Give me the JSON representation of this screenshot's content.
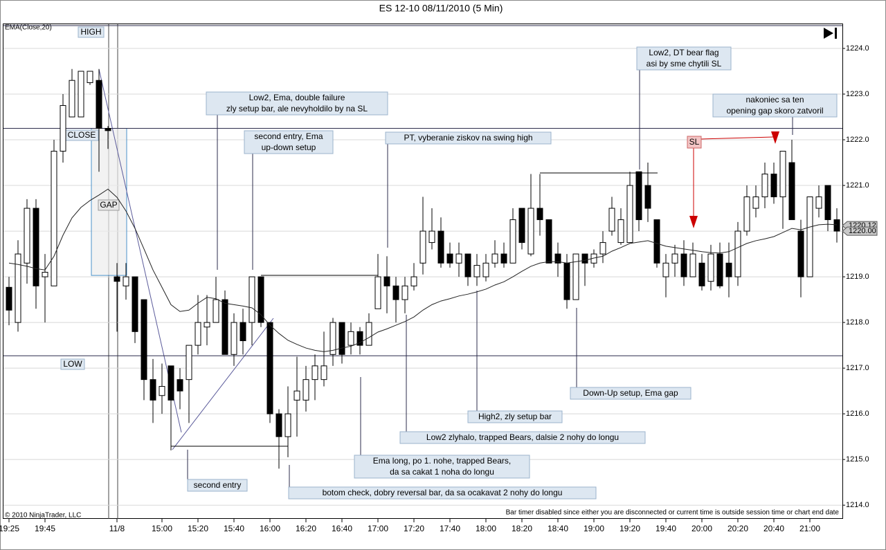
{
  "chart_data": {
    "type": "candlestick",
    "title": "ES 12-10  08/11/2010 (5 Min)",
    "categories": [
      "19:25",
      null,
      null,
      null,
      "19:45",
      null,
      null,
      null,
      null,
      null,
      null,
      null,
      "11/8",
      null,
      null,
      null,
      null,
      "15:00",
      null,
      null,
      null,
      "15:20",
      null,
      null,
      null,
      "15:40",
      null,
      null,
      null,
      "16:00",
      null,
      null,
      null,
      "16:20",
      null,
      null,
      null,
      "16:40",
      null,
      null,
      null,
      "17:00",
      null,
      null,
      null,
      "17:20",
      null,
      null,
      null,
      "17:40",
      null,
      null,
      null,
      "18:00",
      null,
      null,
      null,
      "18:20",
      null,
      null,
      null,
      "18:40",
      null,
      null,
      null,
      "19:00",
      null,
      null,
      null,
      "19:20",
      null,
      null,
      null,
      "19:40",
      null,
      null,
      null,
      "20:00",
      null,
      null,
      null,
      "20:20",
      null,
      null,
      null,
      "20:40",
      null,
      null,
      null,
      "21:00",
      null,
      null,
      null
    ],
    "open": [
      1218.77,
      1218.0,
      1219.3,
      1220.5,
      1219.0,
      1218.8,
      1221.75,
      1222.5,
      1222.5,
      1223.25,
      1223.3,
      1222.25,
      1219.0,
      1218.8,
      1219.0,
      1218.5,
      1216.75,
      1216.4,
      1217.05,
      1216.75,
      1216.75,
      1217.5,
      1217.9,
      1218.0,
      1218.5,
      1217.3,
      1218.0,
      1218.0,
      1219.0,
      1218.0,
      1216.0,
      1215.5,
      1216.3,
      1216.3,
      1216.75,
      1216.75,
      1217.3,
      1218.0,
      1217.5,
      1217.8,
      1217.5,
      1218.3,
      1219.0,
      1218.8,
      1218.5,
      1218.8,
      1219.3,
      1219.75,
      1220.0,
      1219.5,
      1219.3,
      1219.5,
      1219.0,
      1219.0,
      1219.3,
      1219.5,
      1219.3,
      1220.5,
      1219.5,
      1220.5,
      1220.25,
      1219.5,
      1219.3,
      1218.5,
      1219.5,
      1219.3,
      1219.5,
      1220.0,
      1219.75,
      1219.75,
      1221.3,
      1221.0,
      1220.25,
      1219.0,
      1219.3,
      1219.5,
      1219.0,
      1219.3,
      1218.9,
      1219.5,
      1219.3,
      1219.0,
      1220.0,
      1220.5,
      1220.75,
      1221.25,
      1220.75,
      1221.5,
      1220.0,
      1219.0,
      1220.5,
      1221.0,
      1220.25
    ],
    "high": [
      1219.0,
      1219.8,
      1220.7,
      1220.7,
      1219.5,
      1222.0,
      1223.0,
      1223.55,
      1223.5,
      1223.5,
      1223.55,
      1222.3,
      1219.3,
      1219.3,
      1219.0,
      1218.5,
      1217.2,
      1217.1,
      1217.05,
      1217.0,
      1217.5,
      1218.6,
      1218.6,
      1219.0,
      1218.7,
      1218.2,
      1218.3,
      1219.0,
      1219.0,
      1218.0,
      1216.1,
      1216.6,
      1217.25,
      1217.05,
      1217.3,
      1217.8,
      1218.1,
      1218.0,
      1218.0,
      1217.9,
      1218.2,
      1219.5,
      1219.45,
      1219.0,
      1219.0,
      1219.3,
      1220.75,
      1220.5,
      1220.3,
      1219.75,
      1219.75,
      1219.5,
      1219.5,
      1219.5,
      1219.8,
      1219.75,
      1220.5,
      1220.5,
      1221.25,
      1221.25,
      1220.25,
      1219.75,
      1219.5,
      1219.5,
      1219.5,
      1219.6,
      1220.0,
      1220.75,
      1220.5,
      1221.3,
      1221.3,
      1221.5,
      1220.25,
      1219.5,
      1219.7,
      1219.8,
      1219.75,
      1219.5,
      1219.7,
      1219.75,
      1219.75,
      1220.2,
      1221.0,
      1221.0,
      1221.5,
      1221.5,
      1221.75,
      1222.0,
      1220.25,
      1220.75,
      1221.0,
      1221.0,
      1220.5
    ],
    "low": [
      1217.94,
      1217.8,
      1218.85,
      1218.3,
      1218.0,
      1218.8,
      1221.5,
      1222.5,
      1222.5,
      1223.2,
      1221.3,
      1221.8,
      1217.8,
      1218.5,
      1217.55,
      1216.3,
      1215.8,
      1216.0,
      1215.2,
      1216.1,
      1215.8,
      1217.3,
      1217.5,
      1218.0,
      1217.3,
      1217.05,
      1217.3,
      1217.5,
      1217.9,
      1215.8,
      1214.8,
      1215.05,
      1215.5,
      1216.05,
      1216.3,
      1216.6,
      1217.05,
      1217.1,
      1217.3,
      1217.3,
      1217.5,
      1218.3,
      1218.2,
      1218.0,
      1218.2,
      1218.7,
      1219.05,
      1219.6,
      1219.2,
      1219.2,
      1219.0,
      1218.8,
      1218.8,
      1218.9,
      1219.2,
      1219.2,
      1219.3,
      1219.6,
      1219.45,
      1219.9,
      1219.3,
      1219.0,
      1218.3,
      1218.5,
      1218.8,
      1219.2,
      1219.3,
      1219.9,
      1219.7,
      1219.75,
      1220.0,
      1220.2,
      1219.2,
      1218.55,
      1219.0,
      1218.8,
      1219.0,
      1218.7,
      1218.7,
      1218.75,
      1218.55,
      1218.8,
      1219.9,
      1220.3,
      1220.5,
      1220.6,
      1220.05,
      1220.25,
      1218.55,
      1219.0,
      1220.3,
      1220.0,
      1219.75
    ],
    "close": [
      1218.27,
      1219.5,
      1220.5,
      1218.8,
      1219.1,
      1221.75,
      1222.75,
      1223.3,
      1223.5,
      1223.5,
      1222.25,
      1222.2,
      1218.9,
      1219.0,
      1217.8,
      1216.75,
      1216.3,
      1216.6,
      1216.3,
      1216.5,
      1217.5,
      1218.0,
      1218.0,
      1218.5,
      1217.3,
      1218.0,
      1217.6,
      1219.0,
      1218.0,
      1216.0,
      1215.5,
      1216.0,
      1216.5,
      1216.75,
      1217.05,
      1217.05,
      1218.0,
      1217.3,
      1217.8,
      1217.5,
      1218.0,
      1219.0,
      1218.8,
      1218.5,
      1218.8,
      1219.0,
      1220.0,
      1220.0,
      1219.3,
      1219.3,
      1219.5,
      1219.0,
      1219.25,
      1219.3,
      1219.5,
      1219.3,
      1220.25,
      1219.75,
      1220.5,
      1220.25,
      1219.3,
      1219.3,
      1218.5,
      1219.5,
      1219.3,
      1219.5,
      1219.75,
      1220.5,
      1220.25,
      1221.0,
      1220.25,
      1220.5,
      1219.3,
      1219.3,
      1219.5,
      1219.0,
      1219.5,
      1218.8,
      1219.5,
      1218.8,
      1219.0,
      1220.0,
      1220.75,
      1220.75,
      1221.25,
      1220.75,
      1221.75,
      1220.25,
      1219.0,
      1220.75,
      1220.75,
      1220.25,
      1220.0
    ],
    "up_color": "#ffffff",
    "down_color": "#000000",
    "ema": {
      "name": "EMA(Close,20)",
      "color": "#222222",
      "values": [
        1219.3,
        1219.27,
        1219.23,
        1219.18,
        1219.15,
        1219.45,
        1219.91,
        1220.29,
        1220.52,
        1220.67,
        1220.79,
        1220.92,
        1220.74,
        1220.44,
        1220.06,
        1219.61,
        1219.15,
        1218.77,
        1218.39,
        1218.24,
        1218.27,
        1218.42,
        1218.55,
        1218.52,
        1218.42,
        1218.39,
        1218.36,
        1218.32,
        1218.17,
        1217.94,
        1217.76,
        1217.61,
        1217.52,
        1217.44,
        1217.39,
        1217.36,
        1217.39,
        1217.44,
        1217.48,
        1217.56,
        1217.67,
        1217.79,
        1217.86,
        1217.94,
        1218.02,
        1218.12,
        1218.27,
        1218.39,
        1218.47,
        1218.52,
        1218.58,
        1218.62,
        1218.67,
        1218.73,
        1218.82,
        1218.89,
        1219.0,
        1219.12,
        1219.23,
        1219.3,
        1219.33,
        1219.33,
        1219.3,
        1219.33,
        1219.36,
        1219.41,
        1219.45,
        1219.56,
        1219.64,
        1219.73,
        1219.76,
        1219.79,
        1219.73,
        1219.67,
        1219.64,
        1219.61,
        1219.58,
        1219.55,
        1219.53,
        1219.52,
        1219.55,
        1219.64,
        1219.73,
        1219.79,
        1219.83,
        1219.88,
        1219.97,
        1220.06,
        1220.03,
        1220.09,
        1220.14,
        1220.15,
        1220.14
      ]
    },
    "ylim": [
      1213.7,
      1224.53
    ],
    "yticks": [
      {
        "value": 1214,
        "label": "1214.0"
      },
      {
        "value": 1215,
        "label": "1215.0"
      },
      {
        "value": 1216,
        "label": "1216.0"
      },
      {
        "value": 1217,
        "label": "1217.0"
      },
      {
        "value": 1218,
        "label": "1218.0"
      },
      {
        "value": 1219,
        "label": "1219.0"
      },
      {
        "value": 1220,
        "label": "1220.0"
      },
      {
        "value": 1221,
        "label": "1221.0"
      },
      {
        "value": 1222,
        "label": "1222.0"
      },
      {
        "value": 1223,
        "label": "1223.0"
      },
      {
        "value": 1224,
        "label": "1224.0"
      }
    ],
    "grid": true,
    "price_markers": [
      1220.12,
      {
        "value": 1220,
        "label": "1220.00"
      }
    ],
    "levels": [
      {
        "label": "HIGH",
        "value": 1224.5
      },
      {
        "label": "CLOSE",
        "value": 1222.25
      },
      {
        "label": "LOW",
        "value": 1217.27
      }
    ],
    "gap": {
      "label": "GAP",
      "top": 1222.25,
      "bottom": 1219.03
    },
    "stop_label": "SL",
    "annotations": [
      {
        "lines": [
          "Low2, Ema, double failure",
          "zly setup bar, ale nevyholdilo by na SL"
        ]
      },
      {
        "lines": [
          "second entry, Ema",
          "up-down setup"
        ]
      },
      {
        "lines": [
          "PT, vyberanie ziskov na swing high"
        ]
      },
      {
        "lines": [
          "Low2, DT bear flag",
          "asi by sme chytili SL"
        ]
      },
      {
        "lines": [
          "nakoniec sa ten",
          "opening gap skoro zatvoril"
        ]
      },
      {
        "lines": [
          "Down-Up setup, Ema gap"
        ]
      },
      {
        "lines": [
          "High2, zly setup bar"
        ]
      },
      {
        "lines": [
          "Low2 zlyhalo, trapped Bears, dalsie 2 nohy do longu"
        ]
      },
      {
        "lines": [
          "Ema long, po 1. nohe, trapped Bears,",
          "da sa cakat 1 noha do longu"
        ]
      },
      {
        "lines": [
          "botom check, dobry reversal bar, da sa ocakavat 2 nohy do longu"
        ]
      },
      {
        "lines": [
          "second entry"
        ]
      }
    ],
    "copyright": "© 2010 NinjaTrader, LLC",
    "status_text": "Bar timer disabled since either you are disconnected or current time is outside session time or chart end date"
  }
}
